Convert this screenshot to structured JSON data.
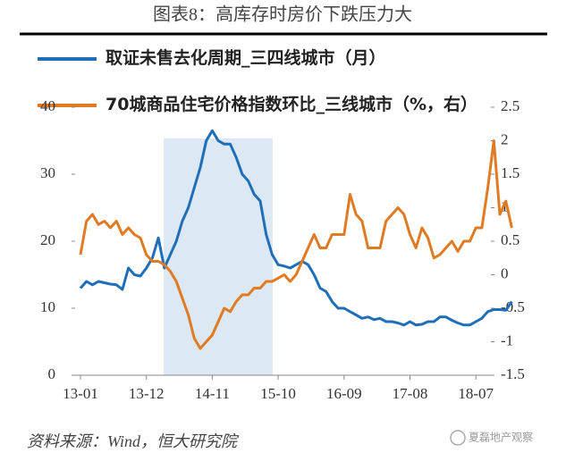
{
  "chart_data": {
    "type": "line",
    "title": "图表8：高库存时房价下跌压力大",
    "source": "资料来源：Wind，恒大研究院",
    "watermark": "夏磊地产观察",
    "categories": [
      "13-01",
      null,
      null,
      null,
      null,
      null,
      null,
      null,
      null,
      null,
      null,
      "13-12",
      null,
      null,
      null,
      null,
      null,
      null,
      null,
      null,
      null,
      null,
      "14-11",
      null,
      null,
      null,
      null,
      null,
      null,
      null,
      null,
      null,
      null,
      "15-10",
      null,
      null,
      null,
      null,
      null,
      null,
      null,
      null,
      null,
      null,
      "16-09",
      null,
      null,
      null,
      null,
      null,
      null,
      null,
      null,
      null,
      null,
      "17-08",
      null,
      null,
      null,
      null,
      null,
      null,
      null,
      null,
      null,
      null,
      "18-07",
      null,
      null,
      null,
      null,
      null,
      null
    ],
    "series": [
      {
        "name": "取证未售去化周期_三四线城市（月）",
        "color": "#1f6fb8",
        "axis": "y",
        "values": [
          13,
          14,
          13.5,
          14,
          13.8,
          13.6,
          13.5,
          12.8,
          16,
          15,
          14.8,
          16,
          17.5,
          20.5,
          16,
          18,
          20,
          23,
          25,
          28,
          31,
          35,
          36.5,
          35,
          34.5,
          34.5,
          32.5,
          30,
          29,
          27,
          26,
          21,
          18,
          16.5,
          16.3,
          16,
          16.5,
          17,
          16.5,
          15,
          13,
          12.5,
          11,
          10,
          10,
          9.5,
          9,
          8.5,
          8.7,
          8.3,
          8.5,
          8,
          8,
          7.8,
          7.5,
          8,
          7.5,
          7.6,
          8,
          8,
          8.7,
          8.7,
          8.2,
          7.8,
          7.5,
          7.5,
          8,
          8.5,
          9.5,
          9.8,
          9.8,
          9.7,
          11
        ]
      },
      {
        "name": "70城商品住宅价格指数环比_三线城市（%，右）",
        "color": "#e07b24",
        "axis": "y2",
        "values": [
          0.3,
          0.8,
          0.9,
          0.75,
          0.8,
          0.7,
          0.8,
          0.6,
          0.7,
          0.6,
          0.55,
          0.3,
          0.2,
          0.2,
          0.15,
          0.05,
          -0.1,
          -0.35,
          -0.6,
          -0.95,
          -1.1,
          -1.0,
          -0.9,
          -0.7,
          -0.5,
          -0.55,
          -0.4,
          -0.3,
          -0.3,
          -0.2,
          -0.2,
          -0.1,
          -0.1,
          -0.05,
          0,
          -0.1,
          0,
          0.2,
          0.4,
          0.6,
          0.4,
          0.4,
          0.6,
          0.6,
          0.6,
          1.2,
          0.9,
          0.8,
          0.4,
          0.4,
          0.4,
          0.8,
          0.9,
          1.0,
          0.9,
          0.6,
          0.4,
          0.7,
          0.55,
          0.25,
          0.3,
          0.4,
          0.5,
          0.35,
          0.5,
          0.5,
          0.7,
          0.7,
          1.3,
          2.0,
          0.9,
          1.1,
          0.7
        ]
      }
    ],
    "ylim": [
      0,
      40
    ],
    "yticks": [
      0,
      10,
      20,
      30,
      40
    ],
    "y2lim": [
      -1.5,
      2.5
    ],
    "y2ticks": [
      -1.5,
      -1,
      -0.5,
      0,
      0.5,
      1,
      1.5,
      2,
      2.5
    ]
  }
}
